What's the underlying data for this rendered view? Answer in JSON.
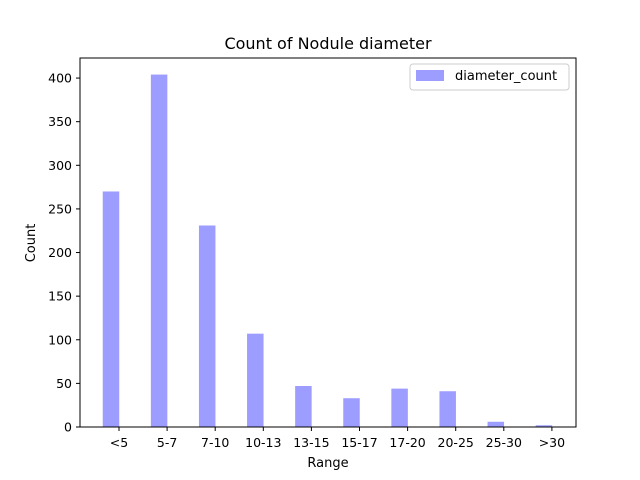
{
  "chart_data": {
    "type": "bar",
    "title": "Count of Nodule diameter",
    "xlabel": "Range",
    "ylabel": "Count",
    "categories": [
      "<5",
      "5-7",
      "7-10",
      "10-13",
      "13-15",
      "15-17",
      "17-20",
      "20-25",
      "25-30",
      ">30"
    ],
    "series": [
      {
        "name": "diameter_count",
        "values": [
          270,
          404,
          231,
          107,
          47,
          33,
          44,
          41,
          6,
          2
        ],
        "color": "#9d9dff"
      }
    ],
    "ylim": [
      0,
      423
    ],
    "yticks": [
      0,
      50,
      100,
      150,
      200,
      250,
      300,
      350,
      400
    ],
    "grid": false,
    "legend_position": "top-right"
  }
}
